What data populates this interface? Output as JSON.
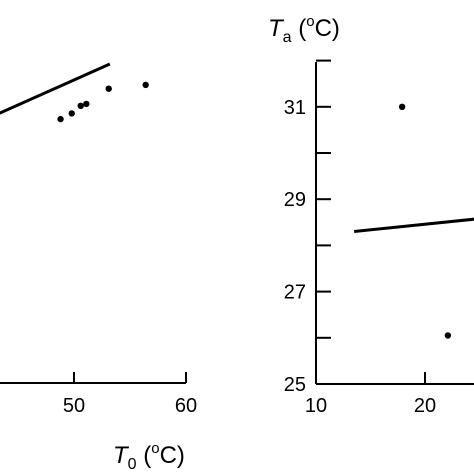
{
  "chart_data": [
    {
      "type": "scatter",
      "xlabel": "T0 (°C)",
      "xlabel_parts": {
        "var": "T",
        "sub": "0",
        "unit_open": " (",
        "deg": "o",
        "unit_close": "C)"
      },
      "ylabel": "",
      "xticks": [
        50,
        60
      ],
      "xlim": [
        38,
        64
      ],
      "ylim": [
        26,
        34
      ],
      "x": [
        48.8,
        49.8,
        50.6,
        51.1,
        53.1,
        56.4
      ],
      "y": [
        28.85,
        29.0,
        29.2,
        29.25,
        29.65,
        29.75
      ],
      "fit_line": {
        "x": [
          38,
          53.2
        ],
        "y": [
          28.3,
          30.3
        ]
      }
    },
    {
      "type": "scatter",
      "ylabel": "Ta (°C)",
      "ylabel_parts": {
        "var": "T",
        "sub": "a",
        "unit_open": " (",
        "deg": "o",
        "unit_close": "C)"
      },
      "xlabel": "",
      "xticks": [
        10,
        20
      ],
      "yticks": [
        25,
        27,
        29,
        31
      ],
      "xlim": [
        10,
        32
      ],
      "ylim": [
        25,
        32
      ],
      "x": [
        17.9,
        22.1
      ],
      "y": [
        31.0,
        26.05
      ],
      "fit_line": {
        "x": [
          13.5,
          32
        ],
        "y": [
          28.3,
          28.75
        ]
      }
    }
  ]
}
